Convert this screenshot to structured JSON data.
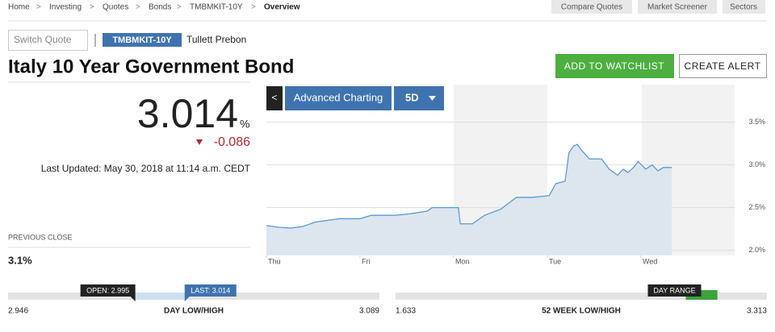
{
  "breadcrumb": [
    "Home",
    "Investing",
    "Quotes",
    "Bonds",
    "TMBMKIT-10Y",
    "Overview"
  ],
  "nav_buttons": [
    "Compare Quotes",
    "Market Screener",
    "Sectors"
  ],
  "search_placeholder": "Switch Quote",
  "ticker": "TMBMKIT-10Y",
  "source": "Tullett Prebon",
  "title": "Italy 10 Year Government Bond",
  "actions": [
    "ADD TO WATCHLIST",
    "CREATE ALERT"
  ],
  "quote": {
    "price": "3.014",
    "unit": "%",
    "change": "-0.086",
    "last_updated": "Last Updated: May 30, 2018 at 11:14 a.m. CEDT"
  },
  "previous_close": {
    "label": "PREVIOUS CLOSE",
    "value": "3.1%"
  },
  "chart_controls": {
    "advanced": "Advanced Charting",
    "period": "5D"
  },
  "chart_data": {
    "type": "line",
    "series": [
      {
        "color": "#5b9bd5",
        "x": [
          0,
          0.13,
          0.26,
          0.39,
          0.52,
          0.78,
          1.0,
          1.12,
          1.38,
          1.55,
          1.72,
          1.77,
          2.05,
          2.07,
          2.2,
          2.33,
          2.5,
          2.67,
          2.84,
          3.02,
          3.09,
          3.19,
          3.23,
          3.28,
          3.32,
          3.36,
          3.45,
          3.58,
          3.66,
          3.75,
          3.81,
          3.86,
          3.92,
          3.97,
          4.05,
          4.12,
          4.18,
          4.24,
          4.33
        ],
        "values": [
          2.29,
          2.27,
          2.26,
          2.28,
          2.33,
          2.37,
          2.37,
          2.41,
          2.41,
          2.43,
          2.46,
          2.5,
          2.5,
          2.31,
          2.31,
          2.41,
          2.48,
          2.62,
          2.62,
          2.64,
          2.78,
          2.81,
          3.14,
          3.22,
          3.24,
          3.18,
          3.07,
          3.07,
          2.95,
          2.88,
          2.95,
          2.91,
          2.97,
          3.04,
          2.95,
          3.0,
          2.93,
          2.97,
          2.97
        ]
      }
    ],
    "xlim": [
      0,
      5
    ],
    "xticks": [
      {
        "value": 0,
        "label": "Thu"
      },
      {
        "value": 1,
        "label": "Fri"
      },
      {
        "value": 2,
        "label": "Mon"
      },
      {
        "value": 3,
        "label": "Tue"
      },
      {
        "value": 4,
        "label": "Wed"
      }
    ],
    "ylim": [
      1.94,
      3.94
    ],
    "yticks": [
      {
        "value": 2.0,
        "label": "2.0%"
      },
      {
        "value": 2.5,
        "label": "2.5%"
      },
      {
        "value": 3.0,
        "label": "3.0%"
      },
      {
        "value": 3.5,
        "label": "3.5%"
      }
    ],
    "grid": true
  },
  "day_range": {
    "low": 2.946,
    "high": 3.089,
    "label": "DAY LOW/HIGH",
    "open": {
      "value": 2.995,
      "label": "OPEN: 2.995"
    },
    "last": {
      "value": 3.014,
      "label": "LAST: 3.014"
    }
  },
  "week52_range": {
    "low": 1.633,
    "high": 3.313,
    "label": "52 WEEK LOW/HIGH",
    "marker_label": "DAY RANGE"
  }
}
